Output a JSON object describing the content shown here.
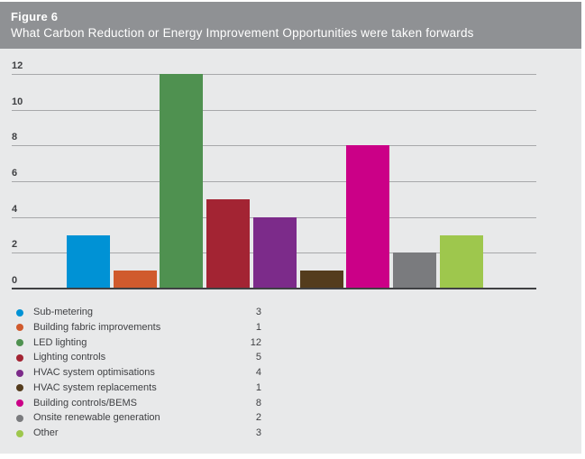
{
  "header": {
    "figure_label": "Figure 6",
    "title": "What Carbon Reduction or Energy Improvement Opportunities were taken forwards"
  },
  "colors": {
    "header_bg": "#8f9194",
    "header_text": "#ffffff",
    "panel_bg": "#e8e9ea",
    "grid_line": "#a7a8aa",
    "axis_line": "#3f4043",
    "text": "#3f4043"
  },
  "chart_data": {
    "type": "bar",
    "title": "What Carbon Reduction or Energy Improvement Opportunities were taken forwards",
    "categories": [
      "Sub-metering",
      "Building fabric improvements",
      "LED lighting",
      "Lighting controls",
      "HVAC system optimisations",
      "HVAC system replacements",
      "Building controls/BEMS",
      "Onsite renewable generation",
      "Other"
    ],
    "values": [
      3,
      1,
      12,
      5,
      4,
      1,
      8,
      2,
      3
    ],
    "colors": [
      "#0092d5",
      "#d05a2d",
      "#4f9150",
      "#a32433",
      "#7c2b8a",
      "#543c1d",
      "#cb0087",
      "#7a7b7e",
      "#9ec74d"
    ],
    "xlabel": "",
    "ylabel": "",
    "ylim": [
      0,
      12
    ],
    "ytick_step": 2,
    "grid": true,
    "legend_position": "bottom",
    "legend_values_shown": true
  }
}
